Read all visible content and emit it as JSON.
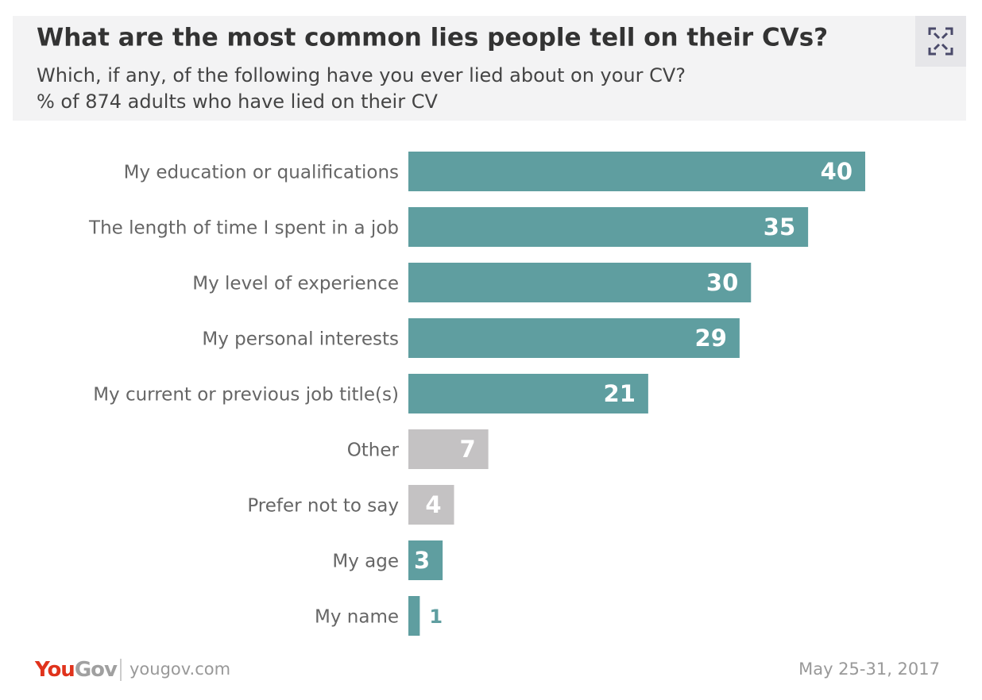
{
  "chart_data": {
    "type": "bar",
    "orientation": "horizontal",
    "title": "What are the most common lies people tell on their CVs?",
    "subtitle": [
      "Which, if any, of the following have you ever lied about on your CV?",
      "% of 874 adults who have lied on their CV"
    ],
    "categories": [
      "My education or qualifications",
      "The length of time I spent in a job",
      "My level of experience",
      "My personal interests",
      "My current or previous job title(s)",
      "Other",
      "Prefer not to say",
      "My age",
      "My name"
    ],
    "values": [
      40,
      35,
      30,
      29,
      21,
      7,
      4,
      3,
      1
    ],
    "colors": [
      "#5f9ea0",
      "#5f9ea0",
      "#5f9ea0",
      "#5f9ea0",
      "#5f9ea0",
      "#c4c2c3",
      "#c4c2c3",
      "#5f9ea0",
      "#5f9ea0"
    ],
    "logo": [
      "You",
      "Gov"
    ],
    "source": "yougov.com",
    "date": "May 25-31, 2017"
  }
}
